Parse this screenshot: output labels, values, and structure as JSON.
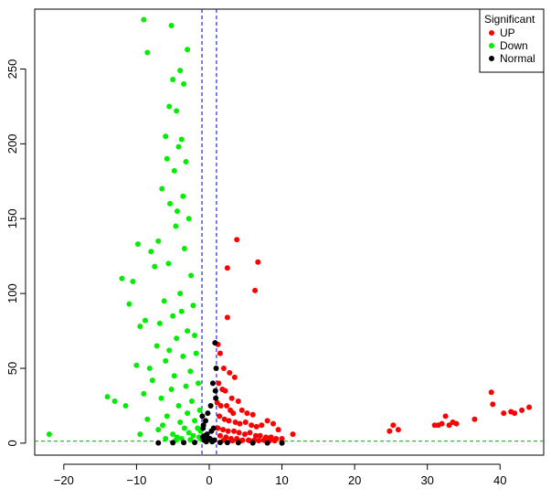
{
  "chart_data": {
    "type": "scatter",
    "title": "",
    "xlabel": "",
    "ylabel": "",
    "xlim": [
      -24,
      46
    ],
    "ylim": [
      -8,
      290
    ],
    "x_ticks": [
      -20,
      -10,
      0,
      10,
      20,
      30,
      40
    ],
    "x_tick_labels": [
      "−20",
      "−10",
      "0",
      "10",
      "20",
      "30",
      "40"
    ],
    "y_ticks": [
      0,
      50,
      100,
      150,
      200,
      250
    ],
    "y_tick_labels": [
      "0",
      "50",
      "100",
      "150",
      "200",
      "250"
    ],
    "grid": false,
    "vlines": [
      -1,
      1
    ],
    "hline": 1.3,
    "legend": {
      "title": "Significant",
      "placement": "top-right",
      "entries": [
        {
          "label": "UP",
          "color": "#ff0000"
        },
        {
          "label": "Down",
          "color": "#00ee00"
        },
        {
          "label": "Normal",
          "color": "#000000"
        }
      ]
    },
    "series": [
      {
        "name": "UP",
        "color": "#ff0000",
        "x": [
          3.8,
          6.7,
          2.5,
          6.3,
          2.5,
          1.2,
          1.5,
          2.0,
          2.8,
          3.5,
          1.3,
          1.8,
          2.2,
          3.1,
          4.0,
          1.1,
          1.6,
          2.4,
          2.9,
          3.3,
          4.5,
          5.2,
          6.0,
          1.4,
          2.1,
          2.7,
          3.6,
          4.2,
          5.0,
          5.8,
          6.5,
          7.2,
          8.0,
          8.8,
          9.5,
          1.2,
          1.9,
          2.6,
          3.4,
          4.1,
          4.9,
          5.6,
          6.4,
          7.0,
          7.8,
          8.5,
          9.2,
          10.0,
          11.5,
          1.5,
          2.3,
          3.0,
          3.8,
          4.6,
          5.4,
          6.2,
          7.5,
          8.3,
          9.0,
          2.0,
          3.2,
          4.4,
          5.5,
          6.8,
          24.8,
          25.3,
          26.0,
          31.0,
          31.5,
          32.0,
          32.5,
          33.0,
          33.5,
          34.0,
          36.5,
          38.8,
          39.0,
          40.5,
          41.5,
          42.0,
          43.0,
          44.0
        ],
        "y": [
          136,
          121,
          117,
          102,
          84,
          66,
          60,
          50,
          47,
          44,
          40,
          36,
          35,
          30,
          28,
          27,
          25,
          25,
          22,
          20,
          22,
          20,
          19,
          18,
          16,
          15,
          14,
          13,
          14,
          12,
          11,
          12,
          15,
          13,
          9,
          10,
          9,
          8,
          8,
          7,
          6,
          7,
          5,
          5,
          4,
          4,
          3,
          3,
          6,
          5,
          4,
          3,
          3,
          2,
          2,
          2,
          2,
          1.8,
          1.6,
          2,
          1.6,
          1.6,
          1.8,
          1.7,
          8,
          12,
          9,
          12,
          12,
          13,
          18,
          12,
          14,
          13,
          16,
          34,
          26,
          20,
          21,
          20,
          22,
          24
        ]
      },
      {
        "name": "Down",
        "color": "#00ee00",
        "x": [
          -9.0,
          -5.2,
          -8.5,
          -3.0,
          -4.0,
          -5.0,
          -3.5,
          -5.5,
          -4.5,
          -3.8,
          -6.0,
          -4.2,
          -5.8,
          -3.2,
          -4.8,
          -6.5,
          -3.6,
          -5.4,
          -4.4,
          -7.0,
          -2.8,
          -4.6,
          -9.8,
          -8.0,
          -3.4,
          -5.6,
          -7.5,
          -12.0,
          -10.5,
          -2.5,
          -4.0,
          -6.2,
          -11.0,
          -2.2,
          -3.8,
          -5.0,
          -8.8,
          -6.8,
          -14.0,
          -9.5,
          -3.0,
          -2.0,
          -4.5,
          -7.2,
          -5.5,
          -13.0,
          -1.8,
          -3.6,
          -6.0,
          -10.0,
          -8.2,
          -2.6,
          -4.8,
          -7.8,
          -1.5,
          -3.2,
          -5.2,
          -9.0,
          -6.6,
          -2.4,
          -4.2,
          -11.5,
          -1.3,
          -3.0,
          -5.8,
          -8.5,
          -2.0,
          -4.0,
          -6.4,
          -1.6,
          -3.4,
          -7.0,
          -1.2,
          -2.8,
          -5.0,
          -9.5,
          -2.2,
          -4.4,
          -1.4,
          -3.8,
          -6.0,
          -1.1,
          -2.6,
          -4.6,
          -22.0
        ],
        "y": [
          283,
          279,
          261,
          263,
          249,
          243,
          240,
          225,
          222,
          203,
          205,
          198,
          190,
          188,
          182,
          170,
          165,
          160,
          155,
          135,
          150,
          145,
          133,
          128,
          130,
          120,
          118,
          110,
          108,
          112,
          100,
          95,
          93,
          92,
          88,
          85,
          82,
          80,
          31,
          78,
          75,
          72,
          70,
          65,
          62,
          28,
          60,
          58,
          55,
          52,
          50,
          48,
          45,
          42,
          40,
          38,
          36,
          33,
          30,
          28,
          25,
          25,
          22,
          20,
          18,
          16,
          15,
          14,
          12,
          10,
          10,
          9,
          8,
          7,
          6,
          6,
          5,
          4,
          4,
          3,
          3,
          2.5,
          2.2,
          2,
          6
        ]
      },
      {
        "name": "Normal",
        "color": "#000000",
        "x": [
          0.8,
          0.5,
          0.2,
          -0.2,
          -0.5,
          -0.8,
          0.9,
          0.6,
          0.3,
          -0.3,
          -0.6,
          -0.9,
          0.1,
          -0.1,
          0.7,
          -0.7,
          0.4,
          -0.4,
          1.5,
          2.5,
          4.0,
          6.0,
          8.0,
          10.0,
          -2.0,
          -3.5,
          -5.0,
          -7.0,
          0.95,
          0.85,
          -0.95,
          -0.85
        ],
        "y": [
          67,
          40,
          25,
          20,
          15,
          12,
          30,
          10,
          8,
          6,
          5,
          4,
          3,
          3,
          2,
          2,
          1,
          1,
          0.5,
          0.4,
          0.3,
          0.2,
          0.2,
          0.1,
          0.5,
          0.4,
          0.3,
          0.2,
          50,
          35,
          18,
          10
        ]
      }
    ]
  }
}
